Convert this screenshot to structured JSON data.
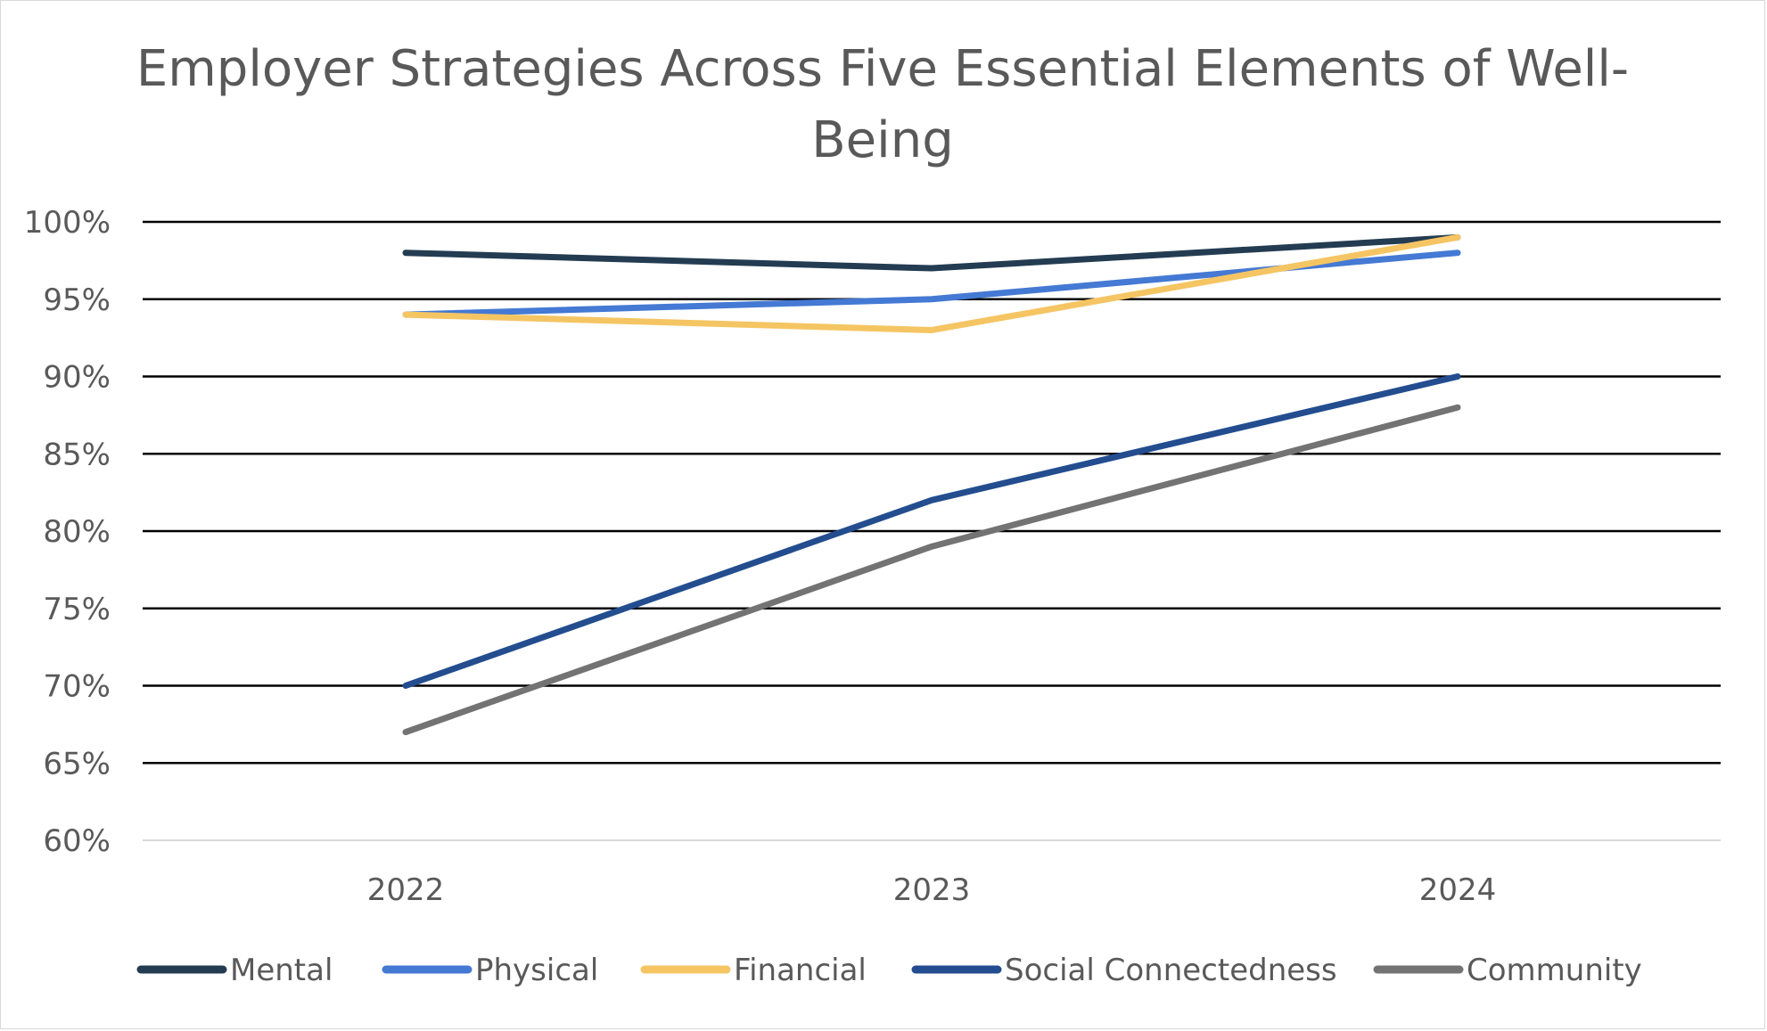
{
  "chart_data": {
    "type": "line",
    "title": "Employer Strategies Across Five Essential Elements of Well-Being",
    "title_lines": [
      "Employer Strategies Across Five Essential Elements of Well-",
      "Being"
    ],
    "xlabel": "",
    "ylabel": "",
    "categories": [
      "2022",
      "2023",
      "2024"
    ],
    "ylim": [
      60,
      100
    ],
    "yticks": [
      60,
      65,
      70,
      75,
      80,
      85,
      90,
      95,
      100
    ],
    "ytick_labels": [
      "60%",
      "65%",
      "70%",
      "75%",
      "80%",
      "85%",
      "90%",
      "95%",
      "100%"
    ],
    "grid": true,
    "legend_position": "bottom",
    "series": [
      {
        "name": "Mental",
        "color": "#243c52",
        "values": [
          98,
          97,
          99
        ]
      },
      {
        "name": "Physical",
        "color": "#4479d4",
        "values": [
          94,
          95,
          98
        ]
      },
      {
        "name": "Financial",
        "color": "#f5c563",
        "values": [
          94,
          93,
          99
        ]
      },
      {
        "name": "Social Connectedness",
        "color": "#234d8f",
        "values": [
          70,
          82,
          90
        ]
      },
      {
        "name": "Community",
        "color": "#737373",
        "values": [
          67,
          79,
          88
        ]
      }
    ]
  }
}
